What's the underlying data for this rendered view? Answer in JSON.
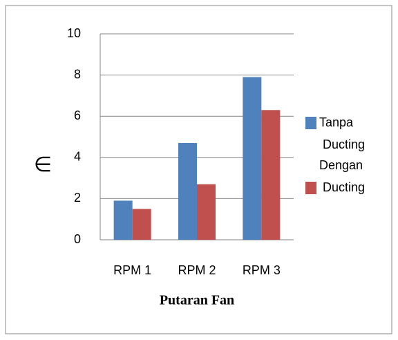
{
  "chart_data": {
    "type": "bar",
    "y_label": "∈",
    "x_label": "Putaran Fan",
    "categories": [
      "RPM 1",
      "RPM 2",
      "RPM 3"
    ],
    "series": [
      {
        "name": "Tanpa Ducting",
        "color": "#4f81bd",
        "values": [
          1.9,
          4.7,
          7.9
        ]
      },
      {
        "name": "Dengan Ducting",
        "color": "#c0504d",
        "values": [
          1.5,
          2.7,
          6.3
        ]
      }
    ],
    "ylim": [
      0,
      10
    ],
    "yticks": [
      0,
      2,
      4,
      6,
      8,
      10
    ],
    "grid": true,
    "legend": "right"
  }
}
